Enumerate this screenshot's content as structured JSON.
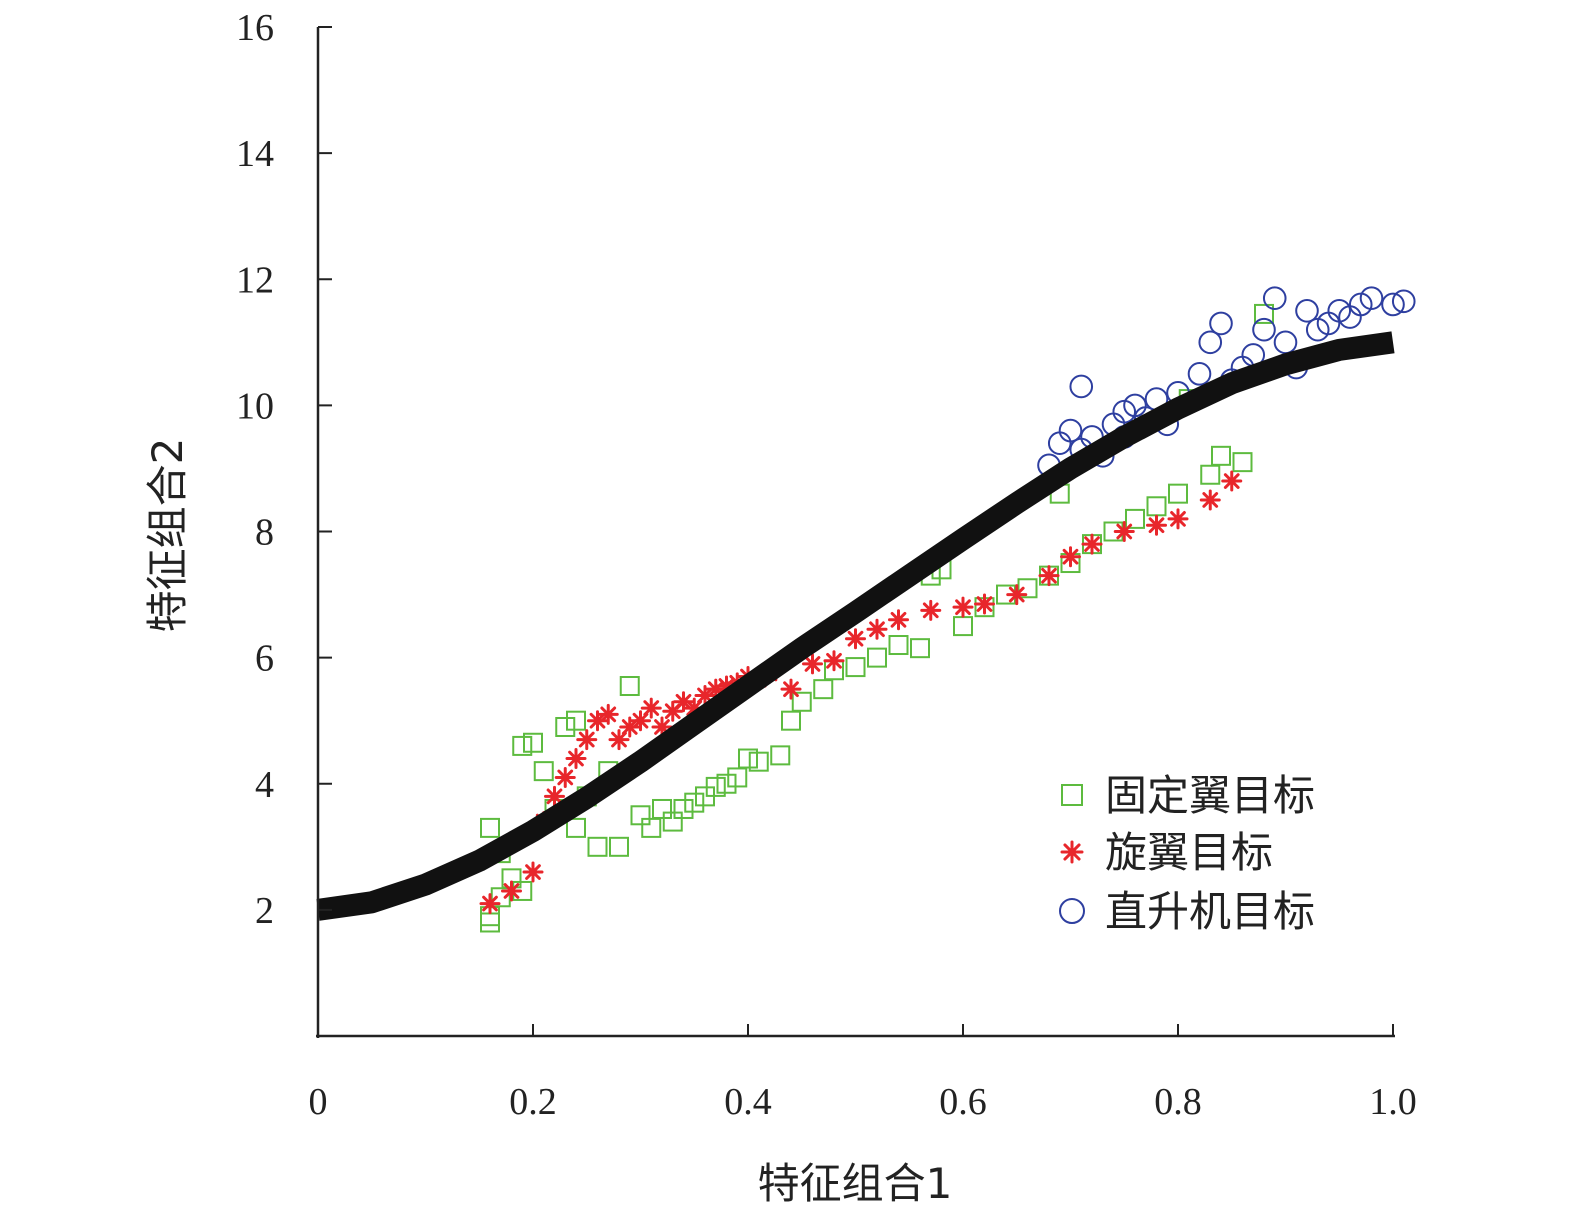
{
  "chart_data": {
    "type": "scatter",
    "title": "",
    "xlabel": "特征组合1",
    "ylabel": "特征组合2",
    "xlim": [
      0,
      1.0
    ],
    "ylim": [
      0,
      16
    ],
    "x_ticks": [
      "0",
      "0.2",
      "0.4",
      "0.6",
      "0.8",
      "1.0"
    ],
    "y_ticks": [
      "2",
      "4",
      "6",
      "8",
      "10",
      "12",
      "14",
      "16"
    ],
    "grid": false,
    "legend_position": "bottom-right",
    "series": [
      {
        "name": "固定翼目标",
        "marker": "square",
        "color": "#5DBB3F",
        "points": [
          [
            0.16,
            3.3
          ],
          [
            0.16,
            1.9
          ],
          [
            0.16,
            1.8
          ],
          [
            0.17,
            2.9
          ],
          [
            0.17,
            2.2
          ],
          [
            0.18,
            2.5
          ],
          [
            0.19,
            2.3
          ],
          [
            0.19,
            4.6
          ],
          [
            0.2,
            4.65
          ],
          [
            0.21,
            4.2
          ],
          [
            0.22,
            3.6
          ],
          [
            0.23,
            4.9
          ],
          [
            0.24,
            5.0
          ],
          [
            0.24,
            3.3
          ],
          [
            0.25,
            3.8
          ],
          [
            0.26,
            3.0
          ],
          [
            0.27,
            4.2
          ],
          [
            0.28,
            3.0
          ],
          [
            0.29,
            5.55
          ],
          [
            0.3,
            3.5
          ],
          [
            0.31,
            3.3
          ],
          [
            0.32,
            3.6
          ],
          [
            0.33,
            3.4
          ],
          [
            0.34,
            3.6
          ],
          [
            0.35,
            3.7
          ],
          [
            0.36,
            3.8
          ],
          [
            0.37,
            3.95
          ],
          [
            0.38,
            4.0
          ],
          [
            0.39,
            4.1
          ],
          [
            0.4,
            4.4
          ],
          [
            0.41,
            4.35
          ],
          [
            0.43,
            4.45
          ],
          [
            0.44,
            5.0
          ],
          [
            0.45,
            5.3
          ],
          [
            0.47,
            5.5
          ],
          [
            0.48,
            5.8
          ],
          [
            0.5,
            5.85
          ],
          [
            0.52,
            6.0
          ],
          [
            0.54,
            6.2
          ],
          [
            0.56,
            6.15
          ],
          [
            0.57,
            7.3
          ],
          [
            0.58,
            7.4
          ],
          [
            0.6,
            6.5
          ],
          [
            0.62,
            6.8
          ],
          [
            0.64,
            7.0
          ],
          [
            0.66,
            7.1
          ],
          [
            0.68,
            7.3
          ],
          [
            0.69,
            8.6
          ],
          [
            0.7,
            7.5
          ],
          [
            0.72,
            7.8
          ],
          [
            0.74,
            8.0
          ],
          [
            0.76,
            8.2
          ],
          [
            0.78,
            8.4
          ],
          [
            0.8,
            8.6
          ],
          [
            0.81,
            10.1
          ],
          [
            0.83,
            8.9
          ],
          [
            0.84,
            9.2
          ],
          [
            0.86,
            9.1
          ],
          [
            0.88,
            11.45
          ]
        ]
      },
      {
        "name": "旋翼目标",
        "marker": "asterisk",
        "color": "#E8262B",
        "points": [
          [
            0.16,
            2.1
          ],
          [
            0.18,
            2.3
          ],
          [
            0.2,
            2.6
          ],
          [
            0.21,
            3.4
          ],
          [
            0.22,
            3.8
          ],
          [
            0.23,
            4.1
          ],
          [
            0.24,
            4.4
          ],
          [
            0.25,
            4.7
          ],
          [
            0.26,
            5.0
          ],
          [
            0.27,
            5.1
          ],
          [
            0.28,
            4.7
          ],
          [
            0.29,
            4.9
          ],
          [
            0.3,
            5.0
          ],
          [
            0.31,
            5.2
          ],
          [
            0.32,
            4.9
          ],
          [
            0.33,
            5.15
          ],
          [
            0.34,
            5.3
          ],
          [
            0.35,
            5.2
          ],
          [
            0.36,
            5.4
          ],
          [
            0.37,
            5.5
          ],
          [
            0.38,
            5.55
          ],
          [
            0.39,
            5.6
          ],
          [
            0.4,
            5.7
          ],
          [
            0.41,
            5.65
          ],
          [
            0.42,
            5.75
          ],
          [
            0.44,
            5.5
          ],
          [
            0.46,
            5.9
          ],
          [
            0.48,
            5.95
          ],
          [
            0.5,
            6.3
          ],
          [
            0.52,
            6.45
          ],
          [
            0.54,
            6.6
          ],
          [
            0.57,
            6.75
          ],
          [
            0.6,
            6.8
          ],
          [
            0.62,
            6.85
          ],
          [
            0.65,
            7.0
          ],
          [
            0.68,
            7.3
          ],
          [
            0.7,
            7.6
          ],
          [
            0.72,
            7.8
          ],
          [
            0.75,
            8.0
          ],
          [
            0.78,
            8.1
          ],
          [
            0.8,
            8.2
          ],
          [
            0.83,
            8.5
          ],
          [
            0.85,
            8.8
          ]
        ]
      },
      {
        "name": "直升机目标",
        "marker": "circle",
        "color": "#2E3FA0",
        "points": [
          [
            0.68,
            9.05
          ],
          [
            0.69,
            9.4
          ],
          [
            0.7,
            9.6
          ],
          [
            0.71,
            9.3
          ],
          [
            0.71,
            10.3
          ],
          [
            0.72,
            9.5
          ],
          [
            0.73,
            9.2
          ],
          [
            0.74,
            9.7
          ],
          [
            0.75,
            9.9
          ],
          [
            0.75,
            9.5
          ],
          [
            0.76,
            10.0
          ],
          [
            0.77,
            9.8
          ],
          [
            0.78,
            10.1
          ],
          [
            0.79,
            9.7
          ],
          [
            0.8,
            10.2
          ],
          [
            0.82,
            10.5
          ],
          [
            0.83,
            11.0
          ],
          [
            0.84,
            11.3
          ],
          [
            0.85,
            10.4
          ],
          [
            0.86,
            10.6
          ],
          [
            0.87,
            10.8
          ],
          [
            0.88,
            11.2
          ],
          [
            0.89,
            11.7
          ],
          [
            0.9,
            11.0
          ],
          [
            0.91,
            10.6
          ],
          [
            0.92,
            11.5
          ],
          [
            0.93,
            11.2
          ],
          [
            0.94,
            11.3
          ],
          [
            0.95,
            11.5
          ],
          [
            0.96,
            11.4
          ],
          [
            0.97,
            11.6
          ],
          [
            0.98,
            11.7
          ],
          [
            1.0,
            11.6
          ],
          [
            1.01,
            11.65
          ]
        ]
      }
    ],
    "boundary_curve": {
      "color": "#111111",
      "x": [
        0,
        0.05,
        0.1,
        0.15,
        0.2,
        0.25,
        0.3,
        0.35,
        0.4,
        0.45,
        0.5,
        0.55,
        0.6,
        0.65,
        0.7,
        0.75,
        0.8,
        0.85,
        0.9,
        0.95,
        1.0
      ],
      "y": [
        2.0,
        2.12,
        2.4,
        2.78,
        3.25,
        3.78,
        4.35,
        4.95,
        5.55,
        6.15,
        6.72,
        7.3,
        7.88,
        8.45,
        9.0,
        9.5,
        9.95,
        10.35,
        10.65,
        10.88,
        11.0
      ]
    }
  }
}
